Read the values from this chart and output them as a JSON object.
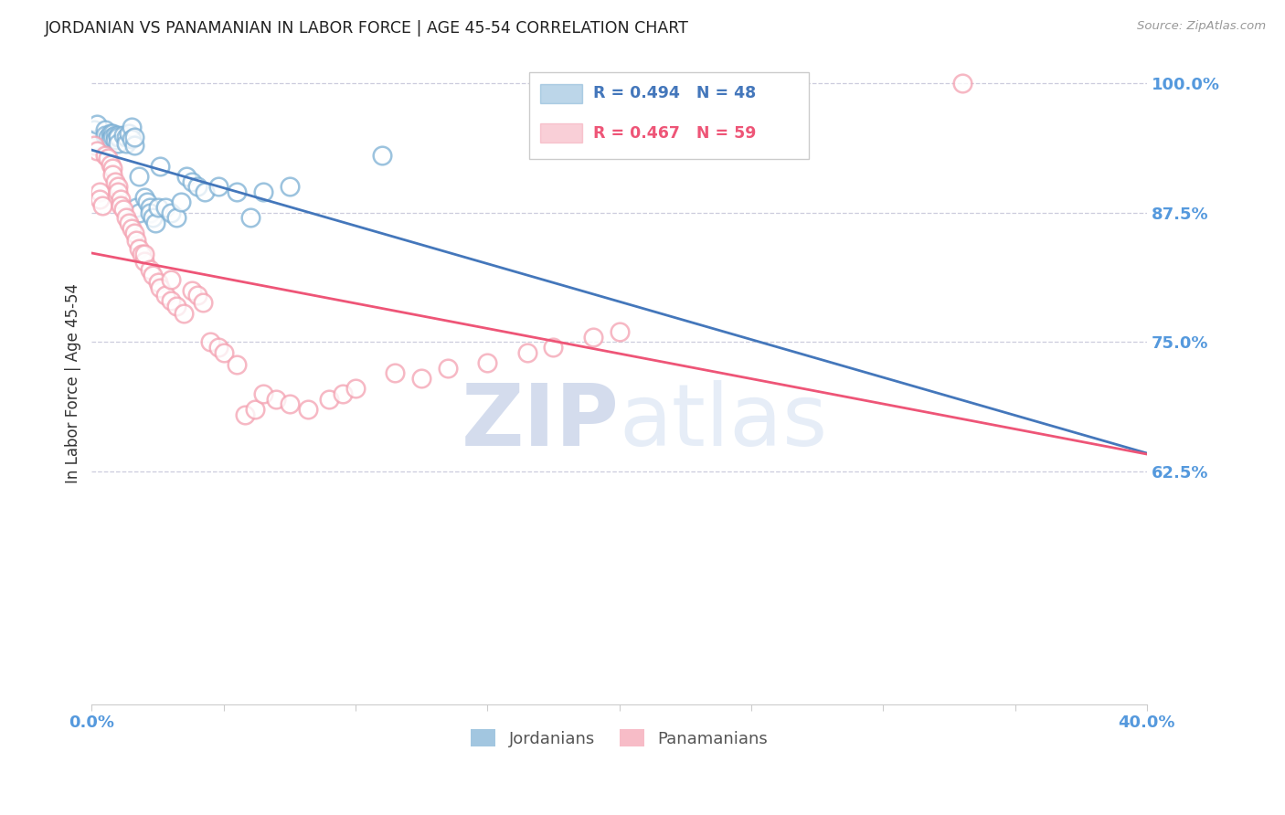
{
  "title": "JORDANIAN VS PANAMANIAN IN LABOR FORCE | AGE 45-54 CORRELATION CHART",
  "source": "Source: ZipAtlas.com",
  "ylabel": "In Labor Force | Age 45-54",
  "xlim": [
    0.0,
    0.4
  ],
  "ylim": [
    0.4,
    1.02
  ],
  "blue_R": 0.494,
  "blue_N": 48,
  "pink_R": 0.467,
  "pink_N": 59,
  "blue_color": "#7BAFD4",
  "pink_color": "#F4A0B0",
  "blue_line_color": "#4477BB",
  "pink_line_color": "#EE5577",
  "legend_label_blue": "Jordanians",
  "legend_label_pink": "Panamanians",
  "title_color": "#222222",
  "axis_label_color": "#333333",
  "tick_color": "#5599DD",
  "grid_color": "#CCCCDD",
  "watermark_zip_color": "#AABBDD",
  "watermark_atlas_color": "#BBCCDD",
  "blue_x": [
    0.001,
    0.001,
    0.002,
    0.005,
    0.005,
    0.006,
    0.007,
    0.007,
    0.008,
    0.008,
    0.009,
    0.009,
    0.01,
    0.01,
    0.01,
    0.012,
    0.013,
    0.013,
    0.014,
    0.015,
    0.015,
    0.016,
    0.016,
    0.017,
    0.018,
    0.018,
    0.02,
    0.021,
    0.022,
    0.022,
    0.023,
    0.024,
    0.025,
    0.026,
    0.028,
    0.03,
    0.032,
    0.034,
    0.036,
    0.038,
    0.04,
    0.043,
    0.048,
    0.055,
    0.06,
    0.065,
    0.075,
    0.11
  ],
  "blue_y": [
    0.955,
    0.945,
    0.96,
    0.955,
    0.95,
    0.948,
    0.952,
    0.946,
    0.952,
    0.948,
    0.95,
    0.945,
    0.95,
    0.948,
    0.942,
    0.95,
    0.948,
    0.942,
    0.952,
    0.958,
    0.946,
    0.94,
    0.948,
    0.88,
    0.875,
    0.91,
    0.89,
    0.885,
    0.88,
    0.875,
    0.87,
    0.865,
    0.88,
    0.92,
    0.88,
    0.875,
    0.87,
    0.885,
    0.91,
    0.905,
    0.9,
    0.895,
    0.9,
    0.895,
    0.87,
    0.895,
    0.9,
    0.93
  ],
  "pink_x": [
    0.001,
    0.002,
    0.003,
    0.003,
    0.004,
    0.005,
    0.006,
    0.007,
    0.008,
    0.008,
    0.009,
    0.01,
    0.01,
    0.011,
    0.011,
    0.012,
    0.013,
    0.014,
    0.015,
    0.016,
    0.017,
    0.018,
    0.019,
    0.02,
    0.02,
    0.022,
    0.023,
    0.025,
    0.026,
    0.028,
    0.03,
    0.03,
    0.032,
    0.035,
    0.038,
    0.04,
    0.042,
    0.045,
    0.048,
    0.05,
    0.055,
    0.058,
    0.062,
    0.065,
    0.07,
    0.075,
    0.082,
    0.09,
    0.095,
    0.1,
    0.115,
    0.125,
    0.135,
    0.15,
    0.165,
    0.175,
    0.19,
    0.2,
    0.33
  ],
  "pink_y": [
    0.94,
    0.935,
    0.895,
    0.888,
    0.882,
    0.93,
    0.928,
    0.922,
    0.918,
    0.912,
    0.905,
    0.9,
    0.895,
    0.888,
    0.882,
    0.878,
    0.87,
    0.865,
    0.86,
    0.855,
    0.848,
    0.84,
    0.835,
    0.828,
    0.835,
    0.82,
    0.815,
    0.808,
    0.802,
    0.795,
    0.81,
    0.79,
    0.785,
    0.778,
    0.8,
    0.795,
    0.788,
    0.75,
    0.745,
    0.74,
    0.728,
    0.68,
    0.685,
    0.7,
    0.695,
    0.69,
    0.685,
    0.695,
    0.7,
    0.705,
    0.72,
    0.715,
    0.725,
    0.73,
    0.74,
    0.745,
    0.755,
    0.76,
    1.0
  ]
}
